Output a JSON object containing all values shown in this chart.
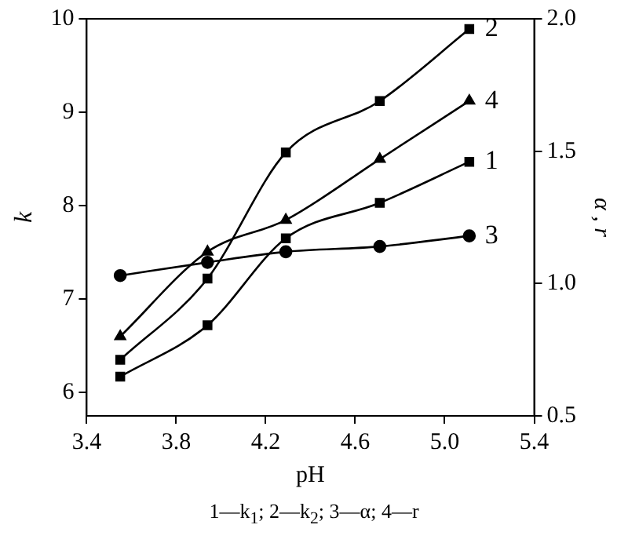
{
  "chart_data": {
    "type": "line",
    "xlabel": "pH",
    "ylabel": "k",
    "y2label": "α , r",
    "x": [
      3.55,
      3.94,
      4.29,
      4.71,
      5.11
    ],
    "series": [
      {
        "name": "1",
        "color": "#000000",
        "marker": "square",
        "values": [
          6.17,
          6.72,
          7.65,
          8.03,
          8.47
        ]
      },
      {
        "name": "2",
        "color": "#000000",
        "marker": "square",
        "values": [
          6.35,
          7.22,
          8.57,
          9.12,
          9.89
        ]
      },
      {
        "name": "3",
        "color": "#000000",
        "marker": "circle",
        "axis": "y2",
        "values": [
          1.03,
          1.08,
          1.12,
          1.14,
          1.18
        ]
      },
      {
        "name": "4",
        "color": "#000000",
        "marker": "triangle",
        "axis": "y2",
        "values": [
          0.8,
          1.12,
          1.24,
          1.47,
          1.69
        ]
      }
    ],
    "xlim": [
      3.4,
      5.4
    ],
    "xticks": [
      3.4,
      3.8,
      4.2,
      4.6,
      {
        "value": 5,
        "label": "5.0"
      },
      5.4
    ],
    "ylim": [
      5.75,
      10
    ],
    "yticks": [
      6,
      7,
      8,
      9,
      10
    ],
    "y2lim": [
      0.5,
      2.0
    ],
    "y2ticks": [
      0.5,
      {
        "value": 1,
        "label": "1.0"
      },
      1.5,
      {
        "value": 2,
        "label": "2.0"
      }
    ],
    "grid": false,
    "legend": false,
    "line_style": "solid",
    "annotations": [
      "1—k$_{1}$; 2—k$_{2}$; 3—α; 4—r"
    ]
  }
}
